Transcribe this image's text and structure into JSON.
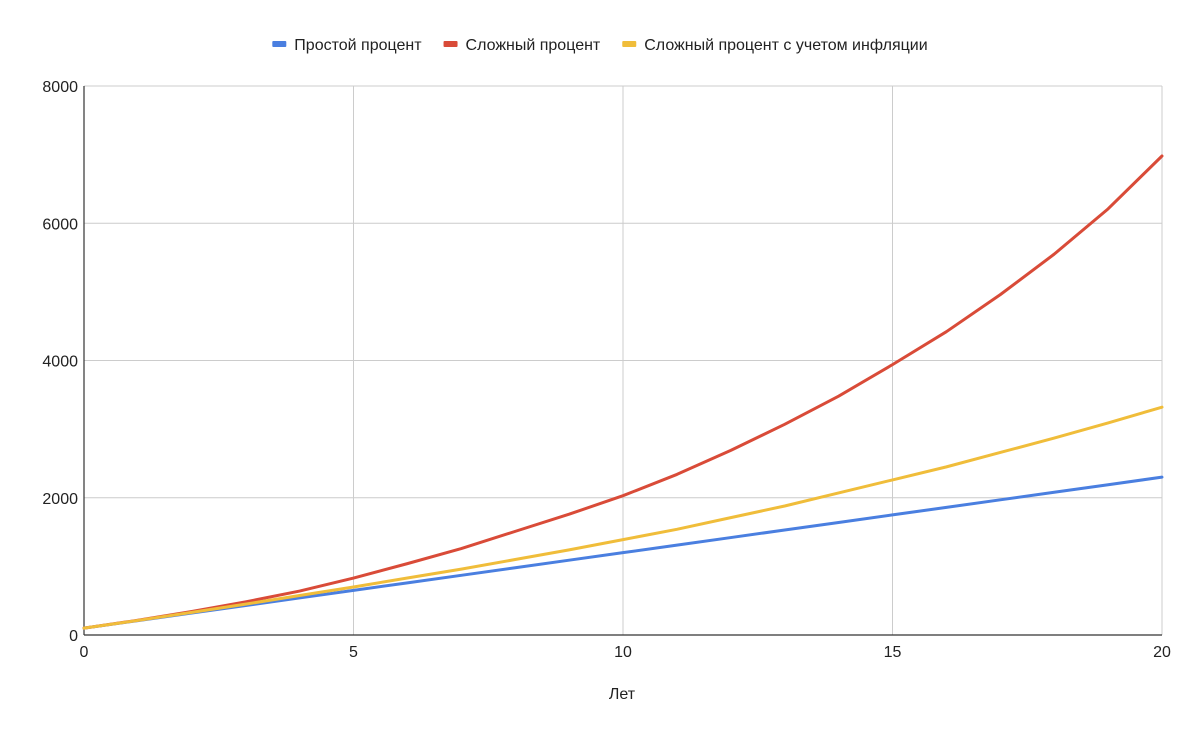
{
  "chart_data": {
    "type": "line",
    "title": "",
    "xlabel": "Лет",
    "ylabel": "",
    "xlim": [
      0,
      20
    ],
    "ylim": [
      0,
      8000
    ],
    "x_ticks": [
      0,
      5,
      10,
      15,
      20
    ],
    "y_ticks": [
      0,
      2000,
      4000,
      6000,
      8000
    ],
    "grid": true,
    "legend": "top-center",
    "x": [
      0,
      1,
      2,
      3,
      4,
      5,
      6,
      7,
      8,
      9,
      10,
      11,
      12,
      13,
      14,
      15,
      16,
      17,
      18,
      19,
      20
    ],
    "series": [
      {
        "name": "Простой процент",
        "color": "#4a7fe0",
        "values": [
          100,
          210,
          320,
          430,
          540,
          650,
          760,
          870,
          980,
          1090,
          1200,
          1310,
          1420,
          1530,
          1640,
          1750,
          1860,
          1970,
          2080,
          2190,
          2300
        ]
      },
      {
        "name": "Сложный процент",
        "color": "#d94b38",
        "values": [
          100,
          215,
          343,
          483,
          640,
          830,
          1040,
          1260,
          1510,
          1760,
          2030,
          2340,
          2690,
          3070,
          3480,
          3940,
          4420,
          4960,
          5550,
          6210,
          6980
        ]
      },
      {
        "name": "Сложный процент с учетом инфляции",
        "color": "#f0bd3a",
        "values": [
          100,
          212,
          330,
          450,
          575,
          700,
          830,
          960,
          1100,
          1240,
          1390,
          1540,
          1710,
          1880,
          2070,
          2260,
          2450,
          2660,
          2870,
          3090,
          3320
        ]
      }
    ]
  }
}
